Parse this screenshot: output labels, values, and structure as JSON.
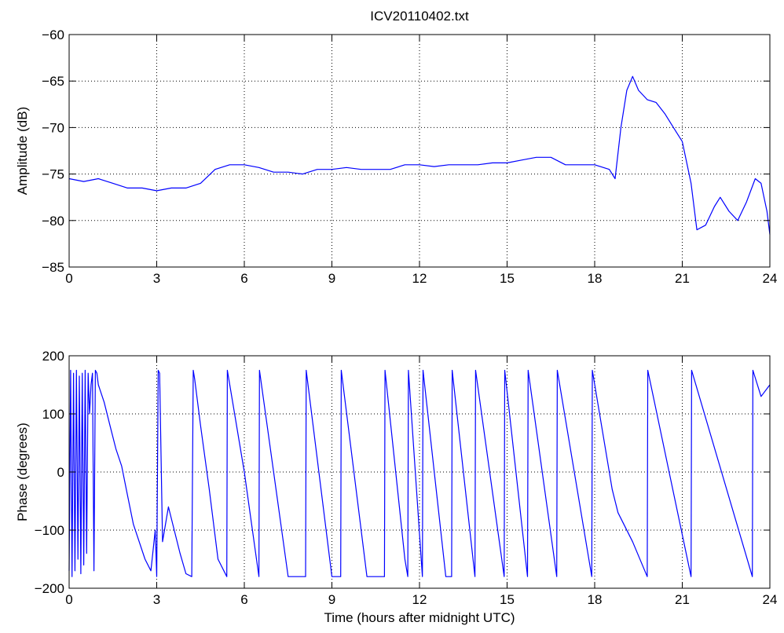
{
  "colors": {
    "line": "#0000ff",
    "axes": "#000000",
    "grid": "#000000",
    "background": "#ffffff"
  },
  "chart_data": [
    {
      "type": "line",
      "title": "ICV20110402.txt",
      "xlabel": "",
      "ylabel": "Amplitude (dB)",
      "xlim": [
        0,
        24
      ],
      "ylim": [
        -85,
        -60
      ],
      "grid": true,
      "xticks": [
        "0",
        "3",
        "6",
        "9",
        "12",
        "15",
        "18",
        "21",
        "24"
      ],
      "yticks": [
        "-85",
        "-80",
        "-75",
        "-70",
        "-65",
        "-60"
      ],
      "series": [
        {
          "x": [
            0,
            0.5,
            1,
            1.5,
            2,
            2.5,
            3,
            3.5,
            4,
            4.5,
            5,
            5.5,
            6,
            6.5,
            7,
            7.5,
            8,
            8.5,
            9,
            9.5,
            10,
            10.5,
            11,
            11.5,
            12,
            12.5,
            13,
            13.5,
            14,
            14.5,
            15,
            15.5,
            16,
            16.5,
            17,
            17.5,
            18,
            18.5,
            18.7,
            18.9,
            19.1,
            19.3,
            19.5,
            19.8,
            20.1,
            20.4,
            20.7,
            21.0,
            21.3,
            21.5,
            21.8,
            22.1,
            22.3,
            22.6,
            22.9,
            23.2,
            23.5,
            23.7,
            23.9,
            24
          ],
          "y": [
            -75.5,
            -75.8,
            -75.5,
            -76,
            -76.5,
            -76.5,
            -76.8,
            -76.5,
            -76.5,
            -76,
            -74.5,
            -74,
            -74,
            -74.3,
            -74.8,
            -74.8,
            -75,
            -74.5,
            -74.5,
            -74.3,
            -74.5,
            -74.5,
            -74.5,
            -74,
            -74,
            -74.2,
            -74,
            -74,
            -74,
            -73.8,
            -73.8,
            -73.5,
            -73.2,
            -73.2,
            -74,
            -74,
            -74,
            -74.5,
            -75.5,
            -70,
            -66,
            -64.5,
            -66,
            -67,
            -67.3,
            -68.5,
            -70,
            -71.5,
            -76,
            -81,
            -80.5,
            -78.5,
            -77.5,
            -79,
            -80,
            -78,
            -75.5,
            -76,
            -79,
            -81.5
          ]
        }
      ]
    },
    {
      "type": "line",
      "title": "",
      "xlabel": "Time (hours after midnight UTC)",
      "ylabel": "Phase (degrees)",
      "xlim": [
        0,
        24
      ],
      "ylim": [
        -200,
        200
      ],
      "grid": true,
      "xticks": [
        "0",
        "3",
        "6",
        "9",
        "12",
        "15",
        "18",
        "21",
        "24"
      ],
      "yticks": [
        "-200",
        "-100",
        "0",
        "100",
        "200"
      ],
      "series": [
        {
          "x": [
            0,
            0.05,
            0.1,
            0.15,
            0.2,
            0.25,
            0.3,
            0.35,
            0.4,
            0.45,
            0.5,
            0.55,
            0.6,
            0.65,
            0.7,
            0.75,
            0.8,
            0.85,
            0.9,
            0.95,
            1.0,
            1.2,
            1.4,
            1.6,
            1.8,
            2.0,
            2.2,
            2.4,
            2.6,
            2.8,
            2.95,
            3.0,
            3.05,
            3.1,
            3.2,
            3.4,
            3.6,
            3.8,
            4.0,
            4.2,
            4.25,
            4.3,
            4.5,
            4.8,
            5.1,
            5.4,
            5.42,
            6.0,
            6.5,
            6.52,
            7.5,
            8.1,
            8.12,
            9.0,
            9.3,
            9.32,
            10.2,
            10.8,
            10.82,
            11.5,
            11.6,
            11.62,
            12.1,
            12.12,
            12.9,
            13.1,
            13.12,
            13.9,
            13.92,
            14.9,
            14.92,
            15.7,
            15.72,
            16.7,
            16.72,
            17.9,
            17.92,
            18.6,
            18.8,
            19.3,
            19.8,
            19.82,
            21.3,
            21.32,
            23.4,
            23.42,
            23.7,
            24.0
          ],
          "y": [
            -170,
            175,
            -180,
            170,
            -170,
            175,
            -150,
            165,
            -175,
            170,
            -160,
            175,
            -140,
            170,
            100,
            150,
            170,
            -170,
            175,
            170,
            150,
            120,
            80,
            40,
            10,
            -40,
            -90,
            -120,
            -150,
            -170,
            -100,
            -180,
            175,
            170,
            -120,
            -60,
            -100,
            -140,
            -175,
            -180,
            175,
            160,
            80,
            -30,
            -150,
            -180,
            175,
            0,
            -180,
            175,
            -180,
            -180,
            175,
            -180,
            -180,
            175,
            -180,
            -180,
            175,
            -150,
            -180,
            175,
            -180,
            175,
            -180,
            -180,
            175,
            -180,
            175,
            -180,
            175,
            -180,
            175,
            -180,
            175,
            -180,
            175,
            -30,
            -70,
            -120,
            -180,
            175,
            -180,
            175,
            -180,
            175,
            130,
            150
          ]
        }
      ]
    }
  ]
}
